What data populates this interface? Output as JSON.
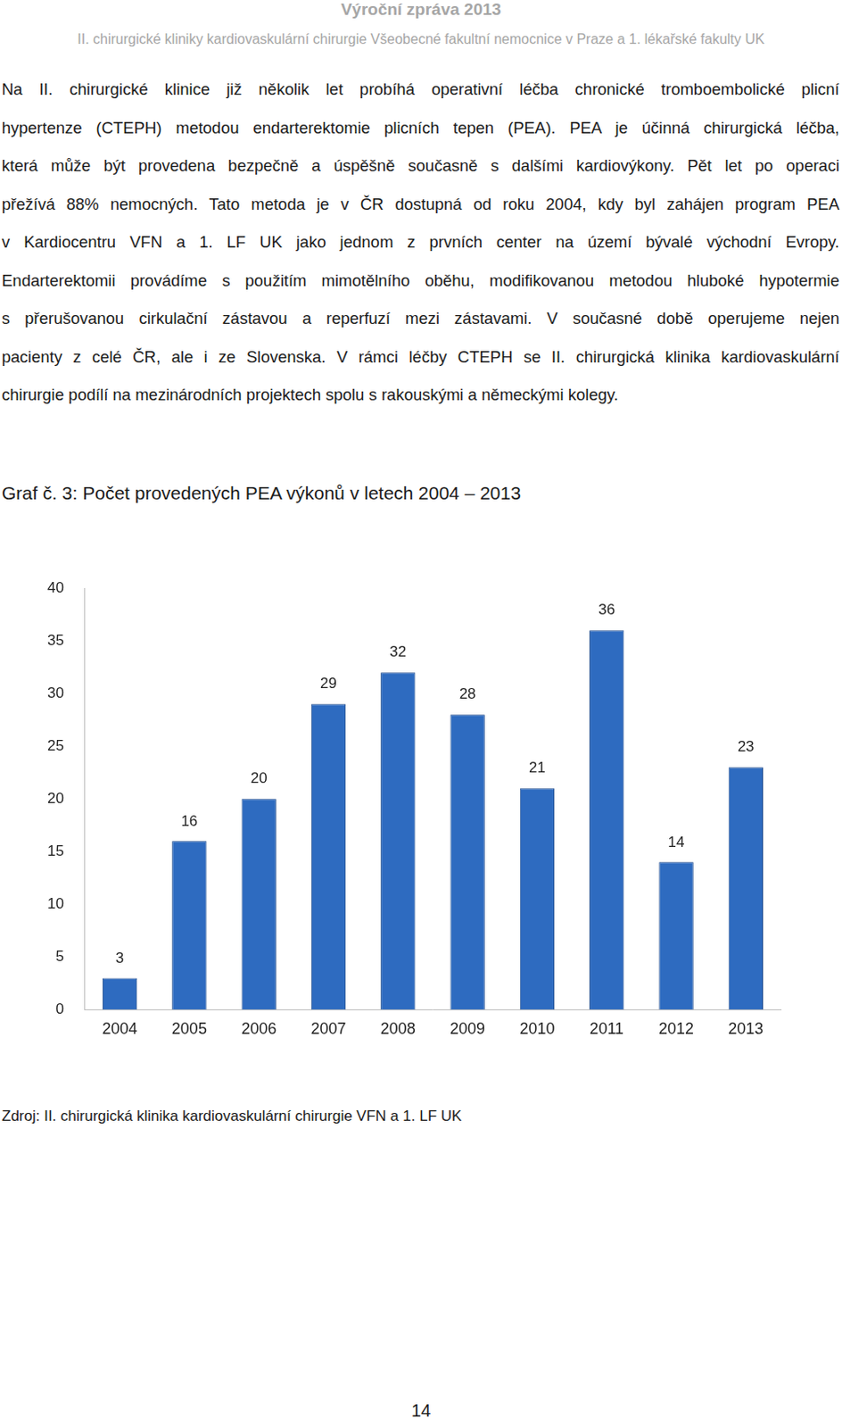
{
  "header": {
    "title": "Výroční zpráva 2013",
    "subtitle": "II. chirurgické kliniky kardiovaskulární chirurgie Všeobecné fakultní nemocnice v Praze a 1. lékařské fakulty UK"
  },
  "paragraph_lines": [
    "Na II. chirurgické klinice již několik let probíhá operativní léčba chronické tromboembolické plicní",
    "hypertenze (CTEPH) metodou endarterektomie plicních tepen (PEA). PEA je účinná chirurgická léčba,",
    "která může být provedena bezpečně a úspěšně současně s dalšími kardiovýkony. Pět let po operaci",
    "přežívá 88% nemocných. Tato metoda je v ČR dostupná od roku 2004, kdy byl zahájen program PEA",
    "v Kardiocentru VFN a 1. LF UK jako jednom z prvních center na území bývalé východní Evropy.",
    "Endarterektomii provádíme s použitím mimotělního oběhu, modifikovanou metodou hluboké hypotermie",
    "s přerušovanou cirkulační zástavou a reperfuzí mezi zástavami. V současné době operujeme nejen",
    "pacienty z celé ČR, ale i ze Slovenska. V rámci léčby CTEPH se II. chirurgická klinika kardiovaskulární",
    "chirurgie podílí na mezinárodních projektech spolu s rakouskými a německými kolegy."
  ],
  "chart_data": {
    "type": "bar",
    "title": "Graf č. 3: Počet provedených PEA výkonů v letech 2004 – 2013",
    "categories": [
      "2004",
      "2005",
      "2006",
      "2007",
      "2008",
      "2009",
      "2010",
      "2011",
      "2012",
      "2013"
    ],
    "values": [
      3,
      16,
      20,
      29,
      32,
      28,
      21,
      36,
      14,
      23
    ],
    "color": "#2e6bc0",
    "ylim": [
      0,
      40
    ],
    "yticks": [
      0,
      5,
      10,
      15,
      20,
      25,
      30,
      35,
      40
    ],
    "grid": false,
    "data_labels": true
  },
  "source": "Zdroj: II. chirurgická klinika kardiovaskulární chirurgie VFN a 1. LF UK",
  "page_number": 14
}
